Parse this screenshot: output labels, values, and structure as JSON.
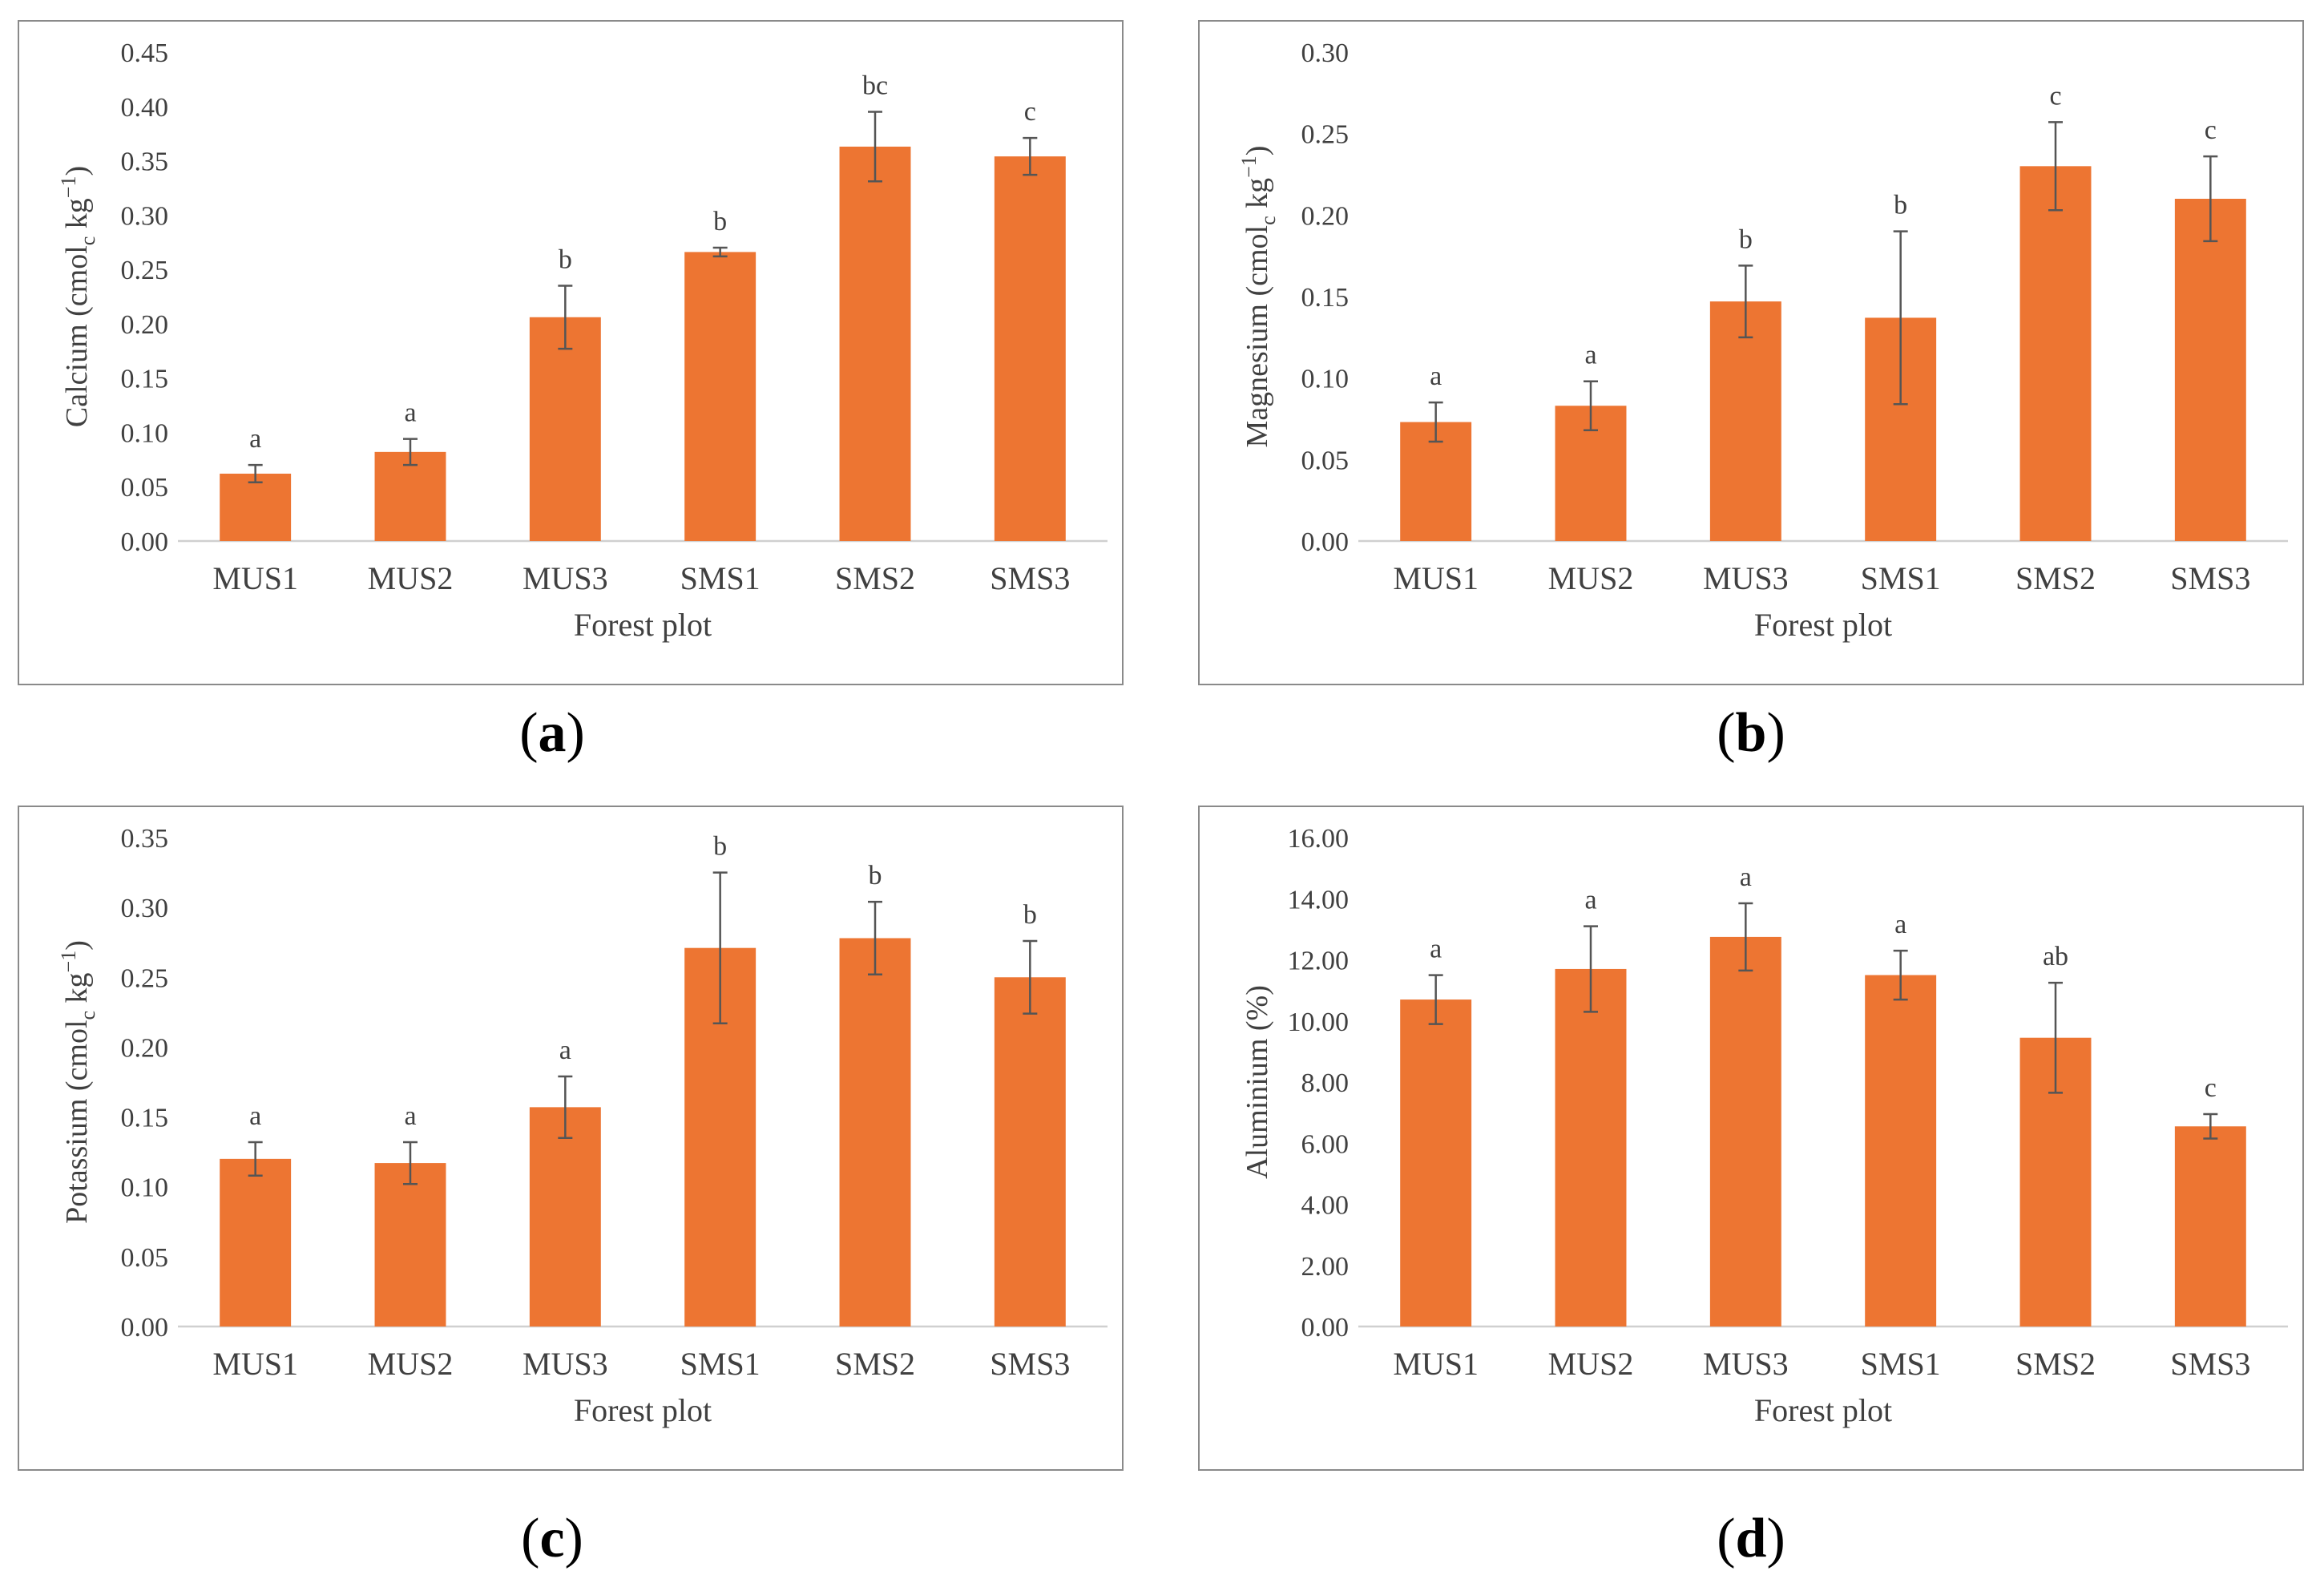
{
  "chart_data": [
    {
      "type": "bar",
      "panel_label": "a",
      "title": "",
      "xlabel": "Forest plot",
      "ylabel_main": "Calcium (cmol",
      "ylabel_sub": "c",
      "ylabel_unit": " kg",
      "ylabel_sup": "−1",
      "ylabel_close": ")",
      "categories": [
        "MUS1",
        "MUS2",
        "MUS3",
        "SMS1",
        "SMS2",
        "SMS3"
      ],
      "values": [
        0.062,
        0.082,
        0.206,
        0.266,
        0.363,
        0.354
      ],
      "errors": [
        0.008,
        0.012,
        0.029,
        0.004,
        0.032,
        0.017
      ],
      "letters": [
        "a",
        "a",
        "b",
        "b",
        "bc",
        "c"
      ],
      "ylim": [
        0,
        0.45
      ],
      "yticks": [
        "0.00",
        "0.05",
        "0.10",
        "0.15",
        "0.20",
        "0.25",
        "0.30",
        "0.35",
        "0.40",
        "0.45"
      ],
      "grid": false,
      "bar_color": "#ED7532"
    },
    {
      "type": "bar",
      "panel_label": "b",
      "title": "",
      "xlabel": "Forest plot",
      "ylabel_main": "Magnesium (cmol",
      "ylabel_sub": "c",
      "ylabel_unit": " kg",
      "ylabel_sup": "−1",
      "ylabel_close": ")",
      "categories": [
        "MUS1",
        "MUS2",
        "MUS3",
        "SMS1",
        "SMS2",
        "SMS3"
      ],
      "values": [
        0.073,
        0.083,
        0.147,
        0.137,
        0.23,
        0.21
      ],
      "errors": [
        0.012,
        0.015,
        0.022,
        0.053,
        0.027,
        0.026
      ],
      "letters": [
        "a",
        "a",
        "b",
        "b",
        "c",
        "c"
      ],
      "ylim": [
        0,
        0.3
      ],
      "yticks": [
        "0.00",
        "0.05",
        "0.10",
        "0.15",
        "0.20",
        "0.25",
        "0.30"
      ],
      "grid": false,
      "bar_color": "#ED7532"
    },
    {
      "type": "bar",
      "panel_label": "c",
      "title": "",
      "xlabel": "Forest plot",
      "ylabel_main": "Potassium (cmol",
      "ylabel_sub": "c",
      "ylabel_unit": " kg",
      "ylabel_sup": "−1",
      "ylabel_close": ")",
      "categories": [
        "MUS1",
        "MUS2",
        "MUS3",
        "SMS1",
        "SMS2",
        "SMS3"
      ],
      "values": [
        0.12,
        0.117,
        0.157,
        0.271,
        0.278,
        0.25
      ],
      "errors": [
        0.012,
        0.015,
        0.022,
        0.054,
        0.026,
        0.026
      ],
      "letters": [
        "a",
        "a",
        "a",
        "b",
        "b",
        "b"
      ],
      "ylim": [
        0,
        0.35
      ],
      "yticks": [
        "0.00",
        "0.05",
        "0.10",
        "0.15",
        "0.20",
        "0.25",
        "0.30",
        "0.35"
      ],
      "grid": false,
      "bar_color": "#ED7532"
    },
    {
      "type": "bar",
      "panel_label": "d",
      "title": "",
      "xlabel": "Forest plot",
      "ylabel_main": "Aluminium (%)",
      "ylabel_sub": "",
      "ylabel_unit": "",
      "ylabel_sup": "",
      "ylabel_close": "",
      "categories": [
        "MUS1",
        "MUS2",
        "MUS3",
        "SMS1",
        "SMS2",
        "SMS3"
      ],
      "values": [
        10.7,
        11.7,
        12.75,
        11.5,
        9.45,
        6.55
      ],
      "errors": [
        0.8,
        1.4,
        1.1,
        0.8,
        1.8,
        0.4
      ],
      "letters": [
        "a",
        "a",
        "a",
        "a",
        "ab",
        "c"
      ],
      "ylim": [
        0,
        16
      ],
      "yticks": [
        "0.00",
        "2.00",
        "4.00",
        "6.00",
        "8.00",
        "10.00",
        "12.00",
        "14.00",
        "16.00"
      ],
      "grid": false,
      "bar_color": "#ED7532"
    }
  ]
}
